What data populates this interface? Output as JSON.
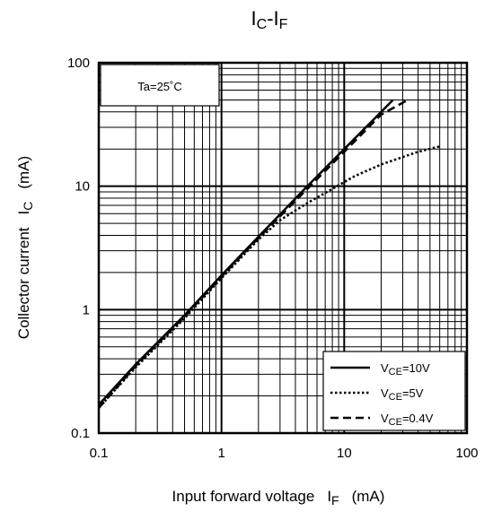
{
  "chart_data": {
    "type": "line",
    "title": {
      "main": "I",
      "sub1": "C",
      "sep": "-I",
      "sub2": "F"
    },
    "xlabel": {
      "text": "Input forward voltage",
      "var": "I",
      "sub": "F",
      "unit": "(mA)"
    },
    "ylabel": {
      "text": "Collector current",
      "var": "I",
      "sub": "C",
      "unit": "(mA)"
    },
    "x_scale": "log",
    "y_scale": "log",
    "xlim": [
      0.1,
      100
    ],
    "ylim": [
      0.1,
      100
    ],
    "x_ticks": [
      "0.1",
      "1",
      "10",
      "100"
    ],
    "y_ticks": [
      "0.1",
      "1",
      "10",
      "100"
    ],
    "grid": true,
    "annotation": "Ta=25˚C",
    "legend_position": "bottom-right",
    "series": [
      {
        "name": "VCE=10V",
        "label_prefix": "V",
        "label_sub": "CE",
        "label_suffix": "=10V",
        "style": "solid",
        "x": [
          0.1,
          0.2,
          0.5,
          1,
          2,
          5,
          10,
          20,
          25
        ],
        "y": [
          0.17,
          0.36,
          0.9,
          1.9,
          3.9,
          10,
          20,
          40,
          50
        ]
      },
      {
        "name": "VCE=5V",
        "label_prefix": "V",
        "label_sub": "CE",
        "label_suffix": "=5V",
        "style": "dotted",
        "x": [
          0.1,
          0.2,
          0.5,
          1,
          2,
          3,
          5,
          8,
          12,
          20,
          40,
          60
        ],
        "y": [
          0.16,
          0.34,
          0.85,
          1.8,
          3.7,
          5.3,
          7.3,
          9.5,
          12,
          15,
          19,
          21
        ]
      },
      {
        "name": "VCE=0.4V",
        "label_prefix": "V",
        "label_sub": "CE",
        "label_suffix": "=0.4V",
        "style": "dashed",
        "x": [
          0.1,
          0.2,
          0.5,
          1,
          2,
          5,
          10,
          20,
          33
        ],
        "y": [
          0.16,
          0.35,
          0.88,
          1.85,
          3.8,
          9.5,
          19,
          38,
          50
        ]
      }
    ]
  }
}
